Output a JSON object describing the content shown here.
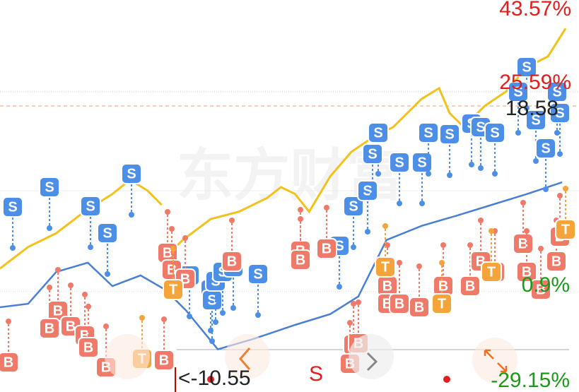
{
  "chart_data": {
    "type": "line",
    "watermark": "东方财富",
    "labels": {
      "high": "43.57%",
      "upper": "25.59%",
      "price": "18.58",
      "lower": "0.9%",
      "low": "-29.15%",
      "min_price": "<-10.55",
      "signal": "S"
    },
    "xlim": [
      0,
      162
    ],
    "ylim": [
      -35,
      45
    ],
    "series": [
      {
        "color": "#f2c21b",
        "x": [
          0,
          8,
          16,
          24,
          32,
          37,
          42,
          46,
          47,
          50,
          52,
          60,
          68,
          76,
          80,
          84,
          88,
          94,
          100,
          106,
          112,
          120,
          125,
          128,
          132,
          138,
          144,
          150,
          156,
          161
        ],
        "values": [
          -9.8,
          -5.4,
          -2.6,
          1.8,
          5.4,
          8.3,
          6.1,
          3.2,
          null,
          -5.4,
          -4.0,
          0.3,
          1.8,
          4.6,
          6.8,
          5.4,
          1.8,
          9.0,
          14.0,
          16.9,
          19.1,
          24.8,
          27.0,
          21.9,
          19.1,
          23.4,
          26.3,
          31.3,
          33.5,
          39.2
        ]
      },
      {
        "color": "#4a7fd6",
        "x": [
          0,
          8,
          16,
          25,
          32,
          40,
          47,
          53,
          62,
          72,
          84,
          94,
          102,
          110,
          120,
          130,
          140,
          150,
          160
        ],
        "values": [
          -17.7,
          -17.0,
          -10.5,
          -8.6,
          -13.4,
          -11.2,
          -14.1,
          -18.4,
          -26.3,
          -24.2,
          -21.3,
          -19.1,
          -15.5,
          -4.0,
          -1.1,
          1.0,
          3.2,
          5.4,
          7.8
        ]
      }
    ],
    "signals": [
      "S",
      "S",
      "S",
      "S",
      "S",
      "S",
      "S",
      "S",
      "S",
      "S",
      "S",
      "S",
      "S",
      "S",
      "S",
      "S",
      "S",
      "S",
      "S",
      "S",
      "S",
      "S",
      "S",
      "S",
      "S",
      "S",
      "S",
      "S",
      "S",
      "S",
      "B",
      "B",
      "B",
      "B",
      "B",
      "B",
      "B",
      "B",
      "B",
      "B",
      "B",
      "B",
      "B",
      "B",
      "B",
      "B",
      "B",
      "B",
      "B",
      "B",
      "B",
      "B",
      "B",
      "B",
      "B",
      "B",
      "B",
      "B",
      "B",
      "B",
      "B",
      "T",
      "T",
      "T",
      "T",
      "T",
      "T"
    ]
  }
}
